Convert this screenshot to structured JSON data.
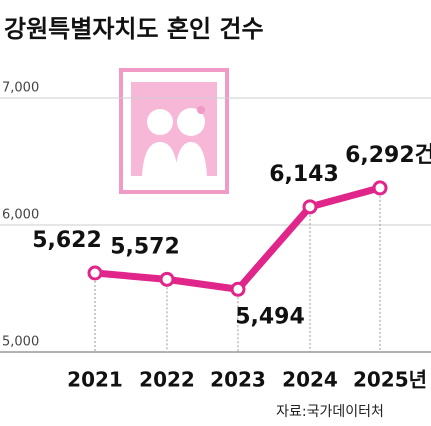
{
  "chart_data": {
    "type": "line",
    "title": "강원특별자치도 혼인 건수",
    "categories": [
      "2021",
      "2022",
      "2023",
      "2024",
      "2025년"
    ],
    "values": [
      5622,
      5572,
      5494,
      6143,
      6292
    ],
    "value_labels": [
      "5,622",
      "5,572",
      "5,494",
      "6,143",
      "6,292건"
    ],
    "color": "#e0268a",
    "ylim": [
      5000,
      7000
    ],
    "yticks": [
      {
        "value": 5000,
        "label": "5,000"
      },
      {
        "value": 6000,
        "label": "6,000"
      },
      {
        "value": 7000,
        "label": "7,000"
      }
    ],
    "grid": true,
    "source": "자료:국가데이터처"
  }
}
